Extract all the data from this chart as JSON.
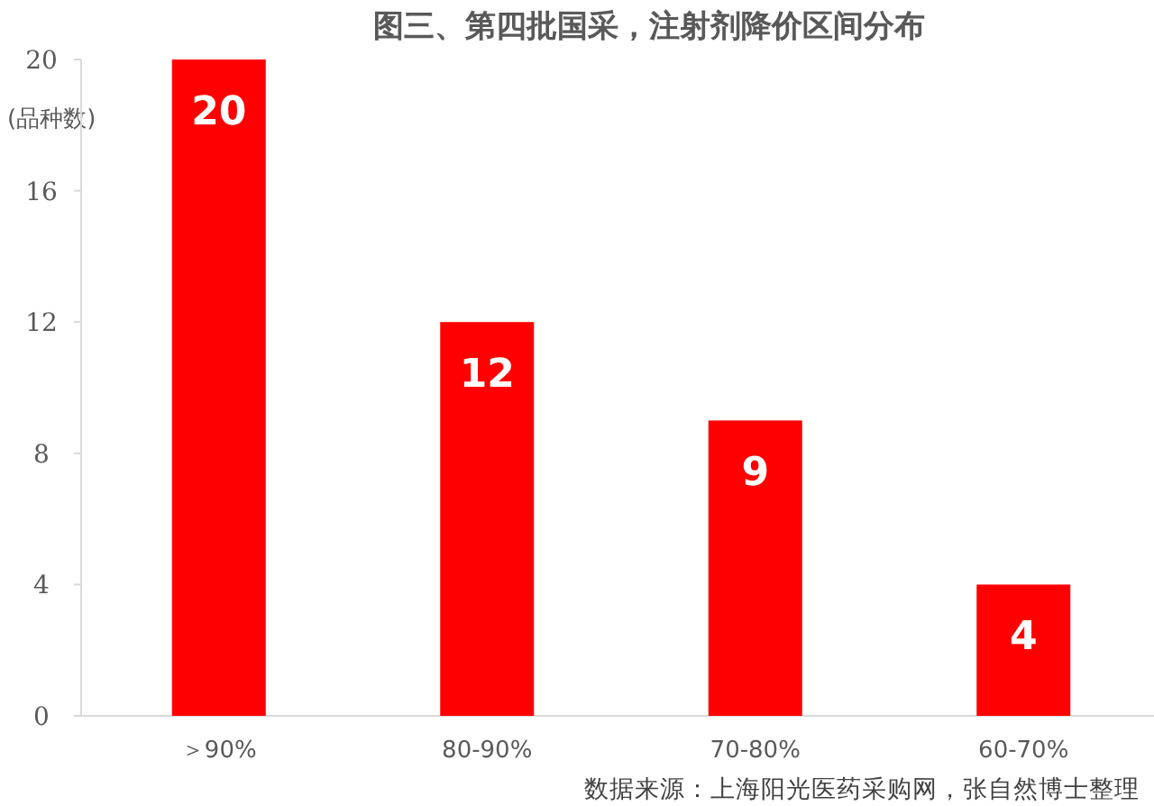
{
  "chart_data": {
    "type": "bar",
    "title": "图三、第四批国采，注射剂降价区间分布",
    "ylabel": "(品种数)",
    "categories": [
      "＞90%",
      "80-90%",
      "70-80%",
      "60-70%"
    ],
    "values": [
      20,
      12,
      9,
      4
    ],
    "color": "#ff0000",
    "ylim": [
      0,
      20
    ],
    "yticks": [
      0,
      4,
      8,
      12,
      16,
      20
    ],
    "data_labels": true,
    "annotations": [
      "数据来源：上海阳光医药采购网，张自然博士整理"
    ]
  }
}
